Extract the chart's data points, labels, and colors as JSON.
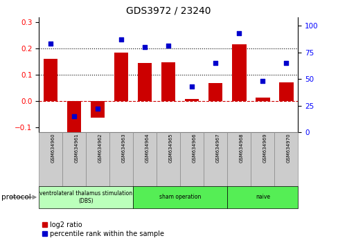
{
  "title": "GDS3972 / 23240",
  "samples": [
    "GSM634960",
    "GSM634961",
    "GSM634962",
    "GSM634963",
    "GSM634964",
    "GSM634965",
    "GSM634966",
    "GSM634967",
    "GSM634968",
    "GSM634969",
    "GSM634970"
  ],
  "log2_ratio": [
    0.16,
    -0.13,
    -0.065,
    0.185,
    0.145,
    0.148,
    0.008,
    0.068,
    0.215,
    0.012,
    0.072
  ],
  "percentile_rank": [
    83,
    15,
    22,
    87,
    80,
    81,
    43,
    65,
    93,
    48,
    65
  ],
  "bar_color": "#cc0000",
  "scatter_color": "#0000cc",
  "ylim_left": [
    -0.12,
    0.32
  ],
  "ylim_right": [
    0,
    108
  ],
  "yticks_left": [
    -0.1,
    0.0,
    0.1,
    0.2,
    0.3
  ],
  "yticks_right": [
    0,
    25,
    50,
    75,
    100
  ],
  "hlines": [
    0.1,
    0.2
  ],
  "zero_line_color": "#cc0000",
  "groups": [
    {
      "label": "ventrolateral thalamus stimulation\n(DBS)",
      "start": 0,
      "end": 3,
      "color": "#bbffbb"
    },
    {
      "label": "sham operation",
      "start": 4,
      "end": 7,
      "color": "#55ee55"
    },
    {
      "label": "naive",
      "start": 8,
      "end": 10,
      "color": "#55ee55"
    }
  ],
  "protocol_label": "protocol",
  "legend_bar_label": "log2 ratio",
  "legend_scatter_label": "percentile rank within the sample",
  "sample_box_color": "#cccccc",
  "sample_box_edge": "#888888"
}
